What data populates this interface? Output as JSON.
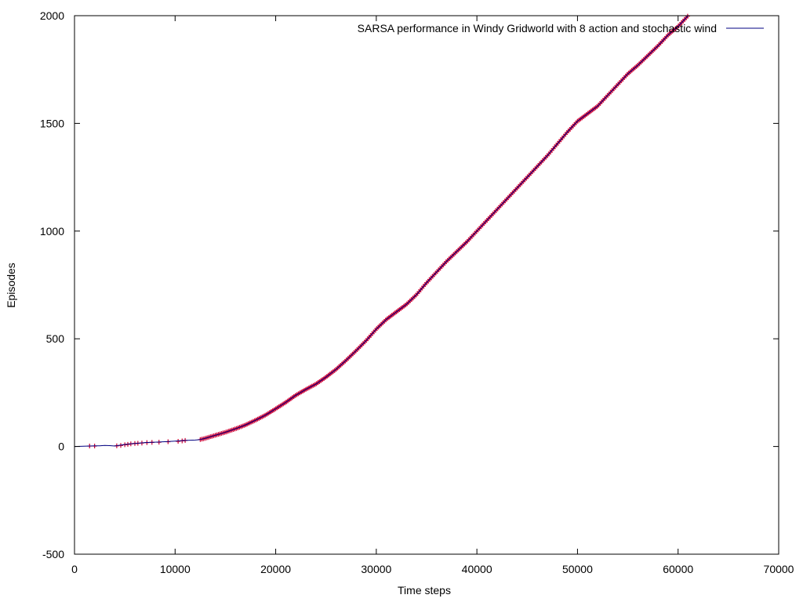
{
  "chart_data": {
    "type": "line",
    "title": "",
    "xlabel": "Time steps",
    "ylabel": "Episodes",
    "xlim": [
      0,
      70000
    ],
    "ylim": [
      -500,
      2000
    ],
    "x_ticks": [
      0,
      10000,
      20000,
      30000,
      40000,
      50000,
      60000,
      70000
    ],
    "y_ticks": [
      -500,
      0,
      500,
      1000,
      1500,
      2000
    ],
    "x_tick_labels": [
      "0",
      "10000",
      "20000",
      "30000",
      "40000",
      "50000",
      "60000",
      "70000"
    ],
    "y_tick_labels": [
      "-500",
      "0",
      "500",
      "1000",
      "1500",
      "2000"
    ],
    "grid": false,
    "legend_position": "top-right",
    "series": [
      {
        "name": "SARSA performance in Windy Gridworld with 8 action and stochastic wind",
        "style": "line",
        "color": "#000080",
        "x": [
          0,
          1500,
          2000,
          2500,
          3000,
          3500,
          4000,
          4500,
          5000,
          5500,
          6000,
          6500,
          7000,
          8000,
          9000,
          10000,
          11000,
          12000,
          12500,
          13000,
          14000,
          15000,
          16000,
          17000,
          18000,
          19000,
          20000,
          21000,
          22000,
          23000,
          24000,
          25000,
          26000,
          27000,
          28000,
          29000,
          30000,
          31000,
          32000,
          33000,
          34000,
          35000,
          36000,
          37000,
          38000,
          39000,
          40000,
          41000,
          42000,
          43000,
          44000,
          45000,
          46000,
          47000,
          48000,
          49000,
          50000,
          51000,
          52000,
          53000,
          54000,
          55000,
          56000,
          57000,
          58000,
          59000,
          60000,
          61000
        ],
        "y": [
          0,
          2,
          3,
          3,
          5,
          4,
          2,
          6,
          9,
          12,
          14,
          16,
          18,
          20,
          22,
          25,
          28,
          30,
          32,
          38,
          52,
          66,
          82,
          100,
          122,
          146,
          175,
          205,
          238,
          265,
          290,
          322,
          358,
          400,
          445,
          492,
          545,
          590,
          625,
          660,
          705,
          760,
          810,
          860,
          905,
          950,
          1000,
          1050,
          1100,
          1150,
          1200,
          1250,
          1300,
          1350,
          1405,
          1460,
          1510,
          1545,
          1580,
          1630,
          1680,
          1730,
          1770,
          1815,
          1860,
          1910,
          1950,
          2000
        ]
      },
      {
        "name": "",
        "style": "points",
        "marker": "+",
        "color": "#cc0033",
        "x_start": 12500,
        "x_end": 61000,
        "isolated_points": [
          [
            1500,
            2
          ],
          [
            2000,
            2
          ],
          [
            4200,
            3
          ],
          [
            4600,
            5
          ],
          [
            5000,
            8
          ],
          [
            5300,
            10
          ],
          [
            5600,
            12
          ],
          [
            6000,
            14
          ],
          [
            6300,
            15
          ],
          [
            6700,
            16
          ],
          [
            7200,
            18
          ],
          [
            7700,
            19
          ],
          [
            8400,
            20
          ],
          [
            9300,
            22
          ],
          [
            10300,
            24
          ],
          [
            10700,
            26
          ],
          [
            11000,
            28
          ]
        ]
      }
    ]
  }
}
